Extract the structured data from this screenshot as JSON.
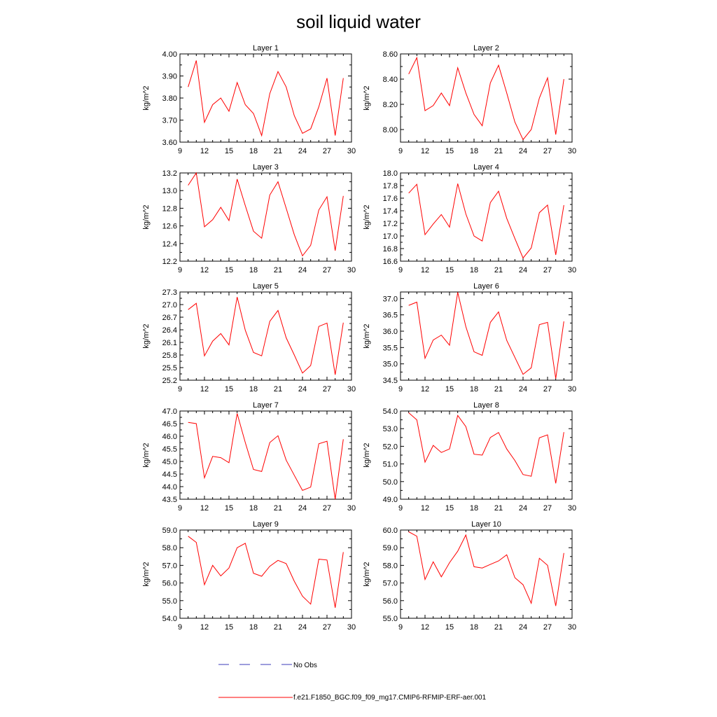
{
  "title": "soil liquid water",
  "colors": {
    "model": "#ff0000",
    "obs": "#3b3bb8",
    "axis": "#000000"
  },
  "legend": {
    "obs_label": "No Obs",
    "model_label": "f.e21.F1850_BGC.f09_f09_mg17.CMIP6-RFMIP-ERF-aer.001"
  },
  "chart_data": [
    {
      "type": "line",
      "title": "Layer 1",
      "ylabel": "kg/m^2",
      "x": [
        10,
        11,
        12,
        13,
        14,
        15,
        16,
        17,
        18,
        19,
        20,
        21,
        22,
        23,
        24,
        25,
        26,
        27,
        28,
        29
      ],
      "xlim": [
        9,
        30
      ],
      "xticks": [
        "9",
        "12",
        "15",
        "18",
        "21",
        "24",
        "27",
        "30"
      ],
      "ylim": [
        3.6,
        4.0
      ],
      "yticks": [
        "3.60",
        "3.70",
        "3.80",
        "3.90",
        "4.00"
      ],
      "series": [
        {
          "values": [
            3.85,
            3.97,
            3.69,
            3.77,
            3.8,
            3.74,
            3.87,
            3.77,
            3.73,
            3.63,
            3.82,
            3.92,
            3.85,
            3.72,
            3.64,
            3.66,
            3.76,
            3.89,
            3.63,
            3.89
          ]
        }
      ]
    },
    {
      "type": "line",
      "title": "Layer 2",
      "ylabel": "kg/m^2",
      "x": [
        10,
        11,
        12,
        13,
        14,
        15,
        16,
        17,
        18,
        19,
        20,
        21,
        22,
        23,
        24,
        25,
        26,
        27,
        28,
        29
      ],
      "xlim": [
        9,
        30
      ],
      "xticks": [
        "9",
        "12",
        "15",
        "18",
        "21",
        "24",
        "27",
        "30"
      ],
      "ylim": [
        7.9,
        8.6
      ],
      "yticks": [
        "8.00",
        "8.20",
        "8.40",
        "8.60"
      ],
      "series": [
        {
          "values": [
            8.44,
            8.57,
            8.15,
            8.19,
            8.29,
            8.19,
            8.49,
            8.29,
            8.12,
            8.03,
            8.37,
            8.51,
            8.29,
            8.06,
            7.92,
            8.0,
            8.25,
            8.41,
            7.96,
            8.4
          ]
        }
      ]
    },
    {
      "type": "line",
      "title": "Layer 3",
      "ylabel": "kg/m^2",
      "x": [
        10,
        11,
        12,
        13,
        14,
        15,
        16,
        17,
        18,
        19,
        20,
        21,
        22,
        23,
        24,
        25,
        26,
        27,
        28,
        29
      ],
      "xlim": [
        9,
        30
      ],
      "xticks": [
        "9",
        "12",
        "15",
        "18",
        "21",
        "24",
        "27",
        "30"
      ],
      "ylim": [
        12.2,
        13.2
      ],
      "yticks": [
        "12.2",
        "12.4",
        "12.6",
        "12.8",
        "13.0",
        "13.2"
      ],
      "series": [
        {
          "values": [
            13.06,
            13.2,
            12.59,
            12.67,
            12.81,
            12.66,
            13.13,
            12.83,
            12.54,
            12.46,
            12.95,
            13.1,
            12.8,
            12.5,
            12.26,
            12.38,
            12.78,
            12.93,
            12.32,
            12.94
          ]
        }
      ]
    },
    {
      "type": "line",
      "title": "Layer 4",
      "ylabel": "kg/m^2",
      "x": [
        10,
        11,
        12,
        13,
        14,
        15,
        16,
        17,
        18,
        19,
        20,
        21,
        22,
        23,
        24,
        25,
        26,
        27,
        28,
        29
      ],
      "xlim": [
        9,
        30
      ],
      "xticks": [
        "9",
        "12",
        "15",
        "18",
        "21",
        "24",
        "27",
        "30"
      ],
      "ylim": [
        16.6,
        18.0
      ],
      "yticks": [
        "16.6",
        "16.8",
        "17.0",
        "17.2",
        "17.4",
        "17.6",
        "17.8",
        "18.0"
      ],
      "series": [
        {
          "values": [
            17.68,
            17.82,
            17.02,
            17.19,
            17.34,
            17.14,
            17.83,
            17.35,
            17.0,
            16.92,
            17.53,
            17.71,
            17.28,
            16.96,
            16.65,
            16.81,
            17.37,
            17.49,
            16.7,
            17.49
          ]
        }
      ]
    },
    {
      "type": "line",
      "title": "Layer 5",
      "ylabel": "kg/m^2",
      "x": [
        10,
        11,
        12,
        13,
        14,
        15,
        16,
        17,
        18,
        19,
        20,
        21,
        22,
        23,
        24,
        25,
        26,
        27,
        28,
        29
      ],
      "xlim": [
        9,
        30
      ],
      "xticks": [
        "9",
        "12",
        "15",
        "18",
        "21",
        "24",
        "27",
        "30"
      ],
      "ylim": [
        25.2,
        27.3
      ],
      "yticks": [
        "25.2",
        "25.5",
        "25.8",
        "26.1",
        "26.4",
        "26.7",
        "27.0",
        "27.3"
      ],
      "series": [
        {
          "values": [
            26.88,
            27.03,
            25.78,
            26.13,
            26.31,
            26.04,
            27.18,
            26.39,
            25.86,
            25.78,
            26.6,
            26.86,
            26.21,
            25.8,
            25.37,
            25.55,
            26.48,
            26.56,
            25.33,
            26.57
          ]
        }
      ]
    },
    {
      "type": "line",
      "title": "Layer 6",
      "ylabel": "kg/m^2",
      "x": [
        10,
        11,
        12,
        13,
        14,
        15,
        16,
        17,
        18,
        19,
        20,
        21,
        22,
        23,
        24,
        25,
        26,
        27,
        28,
        29
      ],
      "xlim": [
        9,
        30
      ],
      "xticks": [
        "9",
        "12",
        "15",
        "18",
        "21",
        "24",
        "27",
        "30"
      ],
      "ylim": [
        34.5,
        37.2
      ],
      "yticks": [
        "34.5",
        "35.0",
        "35.5",
        "36.0",
        "36.5",
        "37.0"
      ],
      "series": [
        {
          "values": [
            36.79,
            36.89,
            35.17,
            35.73,
            35.88,
            35.57,
            37.19,
            36.14,
            35.37,
            35.26,
            36.27,
            36.59,
            35.72,
            35.2,
            34.68,
            34.88,
            36.2,
            36.27,
            34.55,
            36.3
          ]
        }
      ]
    },
    {
      "type": "line",
      "title": "Layer 7",
      "ylabel": "kg/m^2",
      "x": [
        10,
        11,
        12,
        13,
        14,
        15,
        16,
        17,
        18,
        19,
        20,
        21,
        22,
        23,
        24,
        25,
        26,
        27,
        28,
        29
      ],
      "xlim": [
        9,
        30
      ],
      "xticks": [
        "9",
        "12",
        "15",
        "18",
        "21",
        "24",
        "27",
        "30"
      ],
      "ylim": [
        43.5,
        47.0
      ],
      "yticks": [
        "43.5",
        "44.0",
        "44.5",
        "45.0",
        "45.5",
        "46.0",
        "46.5",
        "47.0"
      ],
      "series": [
        {
          "values": [
            46.55,
            46.5,
            44.35,
            45.2,
            45.15,
            44.95,
            46.9,
            45.75,
            44.68,
            44.6,
            45.75,
            46.02,
            45.05,
            44.45,
            43.85,
            43.98,
            45.7,
            45.8,
            43.5,
            45.88
          ]
        }
      ]
    },
    {
      "type": "line",
      "title": "Layer 8",
      "ylabel": "kg/m^2",
      "x": [
        10,
        11,
        12,
        13,
        14,
        15,
        16,
        17,
        18,
        19,
        20,
        21,
        22,
        23,
        24,
        25,
        26,
        27,
        28,
        29
      ],
      "xlim": [
        9,
        30
      ],
      "xticks": [
        "9",
        "12",
        "15",
        "18",
        "21",
        "24",
        "27",
        "30"
      ],
      "ylim": [
        49.0,
        54.0
      ],
      "yticks": [
        "49.0",
        "50.0",
        "51.0",
        "52.0",
        "53.0",
        "54.0"
      ],
      "series": [
        {
          "values": [
            53.9,
            53.5,
            51.1,
            52.05,
            51.65,
            51.85,
            53.75,
            53.12,
            51.55,
            51.5,
            52.5,
            52.78,
            51.85,
            51.2,
            50.4,
            50.3,
            52.48,
            52.65,
            49.9,
            52.8
          ]
        }
      ]
    },
    {
      "type": "line",
      "title": "Layer 9",
      "ylabel": "kg/m^2",
      "x": [
        10,
        11,
        12,
        13,
        14,
        15,
        16,
        17,
        18,
        19,
        20,
        21,
        22,
        23,
        24,
        25,
        26,
        27,
        28,
        29
      ],
      "xlim": [
        9,
        30
      ],
      "xticks": [
        "9",
        "12",
        "15",
        "18",
        "21",
        "24",
        "27",
        "30"
      ],
      "ylim": [
        54.0,
        59.0
      ],
      "yticks": [
        "54.0",
        "55.0",
        "56.0",
        "57.0",
        "58.0",
        "59.0"
      ],
      "series": [
        {
          "values": [
            58.65,
            58.3,
            55.9,
            57.0,
            56.4,
            56.85,
            58.0,
            58.25,
            56.55,
            56.38,
            56.95,
            57.28,
            57.1,
            56.1,
            55.25,
            54.8,
            57.35,
            57.3,
            54.6,
            57.75
          ]
        }
      ]
    },
    {
      "type": "line",
      "title": "Layer 10",
      "ylabel": "kg/m^2",
      "x": [
        10,
        11,
        12,
        13,
        14,
        15,
        16,
        17,
        18,
        19,
        20,
        21,
        22,
        23,
        24,
        25,
        26,
        27,
        28,
        29
      ],
      "xlim": [
        9,
        30
      ],
      "xticks": [
        "9",
        "12",
        "15",
        "18",
        "21",
        "24",
        "27",
        "30"
      ],
      "ylim": [
        55.0,
        60.0
      ],
      "yticks": [
        "55.0",
        "56.0",
        "57.0",
        "58.0",
        "59.0",
        "60.0"
      ],
      "series": [
        {
          "values": [
            59.9,
            59.65,
            57.2,
            58.2,
            57.35,
            58.15,
            58.8,
            59.72,
            57.92,
            57.85,
            58.05,
            58.25,
            58.6,
            57.3,
            56.9,
            55.85,
            58.4,
            58.0,
            55.7,
            58.7
          ]
        }
      ]
    }
  ]
}
